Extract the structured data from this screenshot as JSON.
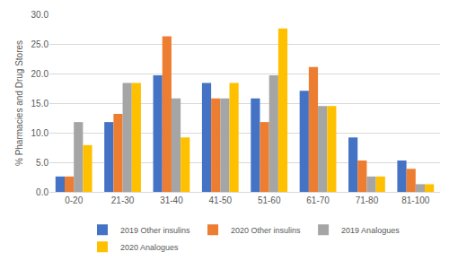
{
  "chart_data": {
    "type": "bar",
    "y_label": "% Pharmacies and Drug Stores",
    "categories": [
      "0-20",
      "21-30",
      "31-40",
      "41-50",
      "51-60",
      "61-70",
      "71-80",
      "81-100"
    ],
    "series": [
      {
        "name": "2019 Other insulins",
        "color": "#4472c4",
        "values": [
          2.6,
          11.8,
          19.7,
          18.4,
          15.8,
          17.1,
          9.2,
          5.3
        ]
      },
      {
        "name": "2020 Other insulins",
        "color": "#ed7d31",
        "values": [
          2.6,
          13.2,
          26.3,
          15.8,
          11.8,
          21.1,
          5.3,
          3.9
        ]
      },
      {
        "name": "2019 Analogues",
        "color": "#a5a5a5",
        "values": [
          11.8,
          18.4,
          15.8,
          15.8,
          19.7,
          14.5,
          2.6,
          1.3
        ]
      },
      {
        "name": "2020 Analogues",
        "color": "#ffc000",
        "values": [
          7.9,
          18.4,
          9.2,
          18.4,
          27.6,
          14.5,
          2.6,
          1.3
        ]
      }
    ],
    "ylim": [
      0,
      30
    ],
    "yticks": [
      {
        "value": 0,
        "label": "0.0"
      },
      {
        "value": 5,
        "label": "5.0"
      },
      {
        "value": 10,
        "label": "10.0"
      },
      {
        "value": 15,
        "label": "15.0"
      },
      {
        "value": 20,
        "label": "20.0"
      },
      {
        "value": 25,
        "label": "25.0"
      },
      {
        "value": 30,
        "label": "30.0"
      }
    ],
    "grid": true,
    "legend": "bottom"
  }
}
